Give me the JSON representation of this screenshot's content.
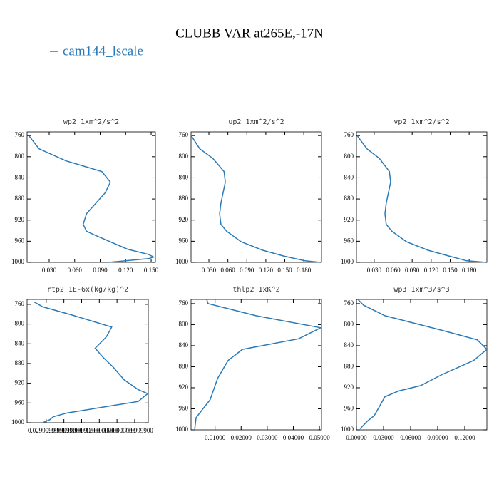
{
  "title": "CLUBB VAR at265E,-17N",
  "legend": {
    "name": "cam144_lscale",
    "color": "#2a7ab8"
  },
  "chart_data": [
    {
      "type": "line",
      "title": "wp2  1xm^2/s^2",
      "y": [
        760,
        785,
        808,
        828,
        848,
        868,
        908,
        928,
        941,
        950,
        975,
        985,
        990,
        993,
        1000
      ],
      "values": [
        0.006,
        0.018,
        0.05,
        0.092,
        0.102,
        0.096,
        0.074,
        0.07,
        0.074,
        0.086,
        0.122,
        0.147,
        0.153,
        0.147,
        0.1
      ],
      "xlim": [
        0.004,
        0.155
      ],
      "ylim": [
        1000,
        753
      ],
      "xticks": [
        {
          "value": 0.03,
          "label": "0.030"
        },
        {
          "value": 0.06,
          "label": "0.060"
        },
        {
          "value": 0.09,
          "label": "0.090"
        },
        {
          "value": 0.12,
          "label": "0.120"
        },
        {
          "value": 0.15,
          "label": "0.150"
        }
      ],
      "yticks": [
        760,
        800,
        840,
        880,
        920,
        960,
        1000
      ]
    },
    {
      "type": "line",
      "title": "up2  1xm^2/s^2",
      "y": [
        760,
        785,
        803,
        828,
        848,
        888,
        908,
        928,
        941,
        961,
        977,
        988,
        997,
        1000
      ],
      "values": [
        0.002,
        0.0155,
        0.036,
        0.054,
        0.056,
        0.049,
        0.047,
        0.049,
        0.058,
        0.081,
        0.115,
        0.148,
        0.182,
        0.206
      ],
      "xlim": [
        0.0018,
        0.208
      ],
      "ylim": [
        1000,
        753
      ],
      "xticks": [
        {
          "value": 0.03,
          "label": "0.030"
        },
        {
          "value": 0.06,
          "label": "0.060"
        },
        {
          "value": 0.09,
          "label": "0.090"
        },
        {
          "value": 0.12,
          "label": "0.120"
        },
        {
          "value": 0.15,
          "label": "0.150"
        },
        {
          "value": 0.18,
          "label": "0.180"
        }
      ],
      "yticks": [
        760,
        800,
        840,
        880,
        920,
        960,
        1000
      ]
    },
    {
      "type": "line",
      "title": "vp2  1xm^2/s^2",
      "y": [
        760,
        785,
        803,
        828,
        848,
        888,
        908,
        928,
        941,
        961,
        977,
        988,
        997,
        1000
      ],
      "values": [
        0.003,
        0.0185,
        0.038,
        0.054,
        0.056,
        0.049,
        0.047,
        0.049,
        0.058,
        0.081,
        0.115,
        0.148,
        0.176,
        0.207
      ],
      "xlim": [
        0.002,
        0.208
      ],
      "ylim": [
        1000,
        753
      ],
      "xticks": [
        {
          "value": 0.03,
          "label": "0.030"
        },
        {
          "value": 0.06,
          "label": "0.060"
        },
        {
          "value": 0.09,
          "label": "0.090"
        },
        {
          "value": 0.12,
          "label": "0.120"
        },
        {
          "value": 0.15,
          "label": "0.150"
        },
        {
          "value": 0.18,
          "label": "0.180"
        }
      ],
      "yticks": [
        760,
        800,
        840,
        880,
        920,
        960,
        1000
      ]
    },
    {
      "type": "line",
      "title": "rtp2  1E-6x(kg/kg)^2",
      "y": [
        755,
        765,
        781,
        806,
        826,
        849,
        867,
        888,
        913,
        933,
        941,
        957,
        965,
        980,
        988,
        994,
        1000
      ],
      "values": [
        0.0096,
        0.024,
        0.072,
        0.141,
        0.132,
        0.113,
        0.126,
        0.144,
        0.162,
        0.186,
        0.202,
        0.186,
        0.144,
        0.066,
        0.042,
        0.036,
        0.024
      ],
      "xlim": [
        -0.0024,
        0.203
      ],
      "ylim": [
        1000,
        750
      ],
      "xticks": [
        {
          "value": 0.03,
          "label": "0.0299999900"
        },
        {
          "value": 0.06,
          "label": "0.0599999900"
        },
        {
          "value": 0.09,
          "label": "0.0899999900"
        },
        {
          "value": 0.12,
          "label": "0.1200000000"
        },
        {
          "value": 0.15,
          "label": "0.1500000000"
        },
        {
          "value": 0.18,
          "label": "0.1799999900"
        }
      ],
      "yticks": [
        760,
        800,
        840,
        880,
        920,
        960,
        1000
      ]
    },
    {
      "type": "line",
      "title": "thlp2  1xK^2",
      "y": [
        752,
        760,
        783,
        806,
        827,
        847,
        868,
        902,
        943,
        963,
        977,
        1000
      ],
      "values": [
        0.0068,
        0.0073,
        0.0257,
        0.0505,
        0.042,
        0.0205,
        0.015,
        0.011,
        0.0081,
        0.0049,
        0.0027,
        0.0022
      ],
      "xlim": [
        0.0008,
        0.0508
      ],
      "ylim": [
        1000,
        752
      ],
      "xticks": [
        {
          "value": 0.01,
          "label": "0.01000"
        },
        {
          "value": 0.02,
          "label": "0.02000"
        },
        {
          "value": 0.03,
          "label": "0.03000"
        },
        {
          "value": 0.04,
          "label": "0.04000"
        },
        {
          "value": 0.05,
          "label": "0.05000"
        }
      ],
      "yticks": [
        760,
        800,
        840,
        880,
        920,
        960,
        1000
      ]
    },
    {
      "type": "line",
      "title": "wp3  1xm^3/s^3",
      "y": [
        752,
        763,
        783,
        809,
        829,
        847,
        868,
        895,
        916,
        926,
        937,
        957,
        973,
        984,
        998
      ],
      "values": [
        0.0016,
        0.0079,
        0.0316,
        0.091,
        0.134,
        0.1445,
        0.13,
        0.0947,
        0.071,
        0.047,
        0.0316,
        0.025,
        0.0197,
        0.0118,
        0.004
      ],
      "xlim": [
        0,
        0.1445
      ],
      "ylim": [
        1000,
        752
      ],
      "xticks": [
        {
          "value": 0,
          "label": "0.00000"
        },
        {
          "value": 0.03,
          "label": "0.03000"
        },
        {
          "value": 0.06,
          "label": "0.06000"
        },
        {
          "value": 0.09,
          "label": "0.09000"
        },
        {
          "value": 0.12,
          "label": "0.12000"
        }
      ],
      "yticks": [
        760,
        800,
        840,
        880,
        920,
        960,
        1000
      ]
    }
  ]
}
